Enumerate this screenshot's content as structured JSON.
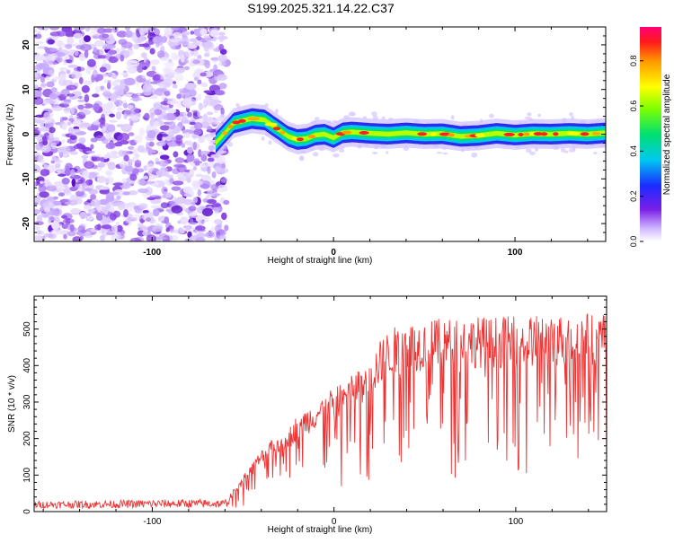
{
  "title": "S199.2025.321.14.22.C37",
  "chart_data": [
    {
      "type": "heatmap",
      "xlabel": "Height of straight line (km)",
      "ylabel": "Frequency (Hz)",
      "xlim": [
        -165,
        150
      ],
      "ylim": [
        -24,
        24
      ],
      "xticks": [
        -100,
        0,
        100
      ],
      "yticks": [
        -20,
        -10,
        0,
        10,
        20
      ],
      "noise_region_x": [
        -165,
        -62
      ],
      "signal_ridge": {
        "x": [
          -65,
          -55,
          -45,
          -38,
          -32,
          -25,
          -20,
          -15,
          -10,
          -5,
          0,
          5,
          10,
          20,
          30,
          40,
          50,
          60,
          70,
          80,
          90,
          100,
          110,
          120,
          130,
          140,
          150
        ],
        "freq": [
          -2,
          2.5,
          3.5,
          3.2,
          1.5,
          -0.5,
          -1.2,
          -1,
          -0.2,
          0,
          -0.8,
          0.3,
          0.5,
          0.2,
          0,
          0.3,
          0,
          0.1,
          -0.5,
          -0.3,
          0.2,
          -0.2,
          0.1,
          0,
          0.2,
          0,
          0.3
        ]
      },
      "colorbar": {
        "label": "Normalized spectral amplitude",
        "range": [
          0,
          0.95
        ],
        "ticks": [
          "0.0",
          "0.2",
          "0.4",
          "0.6",
          "0.8"
        ],
        "ticks_v": [
          0,
          0.2,
          0.4,
          0.6,
          0.8
        ]
      }
    },
    {
      "type": "line",
      "xlabel": "Height of straight line (km)",
      "ylabel": "SNR (10 * v/v)",
      "xlim": [
        -165,
        150
      ],
      "ylim": [
        0,
        590
      ],
      "xticks": [
        -100,
        0,
        100
      ],
      "yticks": [
        0,
        100,
        200,
        300,
        400,
        500
      ],
      "color": "#ee3333",
      "x": [
        -165,
        -120,
        -80,
        -60,
        -50,
        -40,
        -30,
        -20,
        -10,
        0,
        10,
        20,
        25,
        30,
        40,
        50,
        60,
        80,
        100,
        120,
        140,
        150
      ],
      "envelope": [
        22,
        24,
        26,
        25,
        95,
        160,
        205,
        250,
        290,
        320,
        360,
        400,
        440,
        470,
        490,
        495,
        500,
        505,
        505,
        510,
        515,
        515
      ]
    }
  ]
}
